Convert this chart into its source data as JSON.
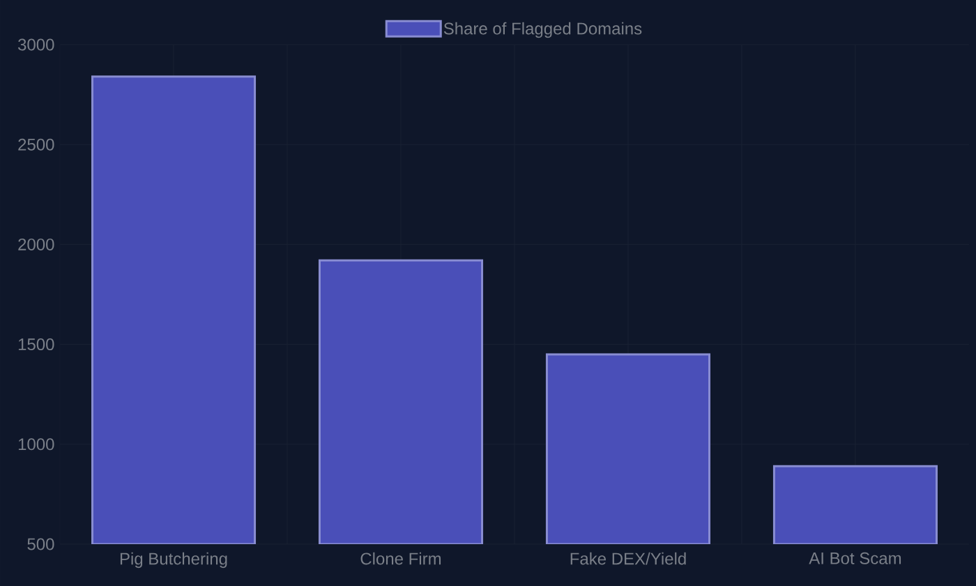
{
  "chart_data": {
    "type": "bar",
    "categories": [
      "Pig Butchering",
      "Clone Firm",
      "Fake DEX/Yield",
      "AI Bot Scam"
    ],
    "series": [
      {
        "name": "Share of Flagged Domains",
        "color": "#4a4fb8",
        "values": [
          2840,
          1920,
          1450,
          890
        ]
      }
    ],
    "ylim": [
      500,
      3000
    ],
    "yticks": [
      500,
      1000,
      1500,
      2000,
      2500,
      3000
    ],
    "grid": true,
    "legend": "top"
  }
}
